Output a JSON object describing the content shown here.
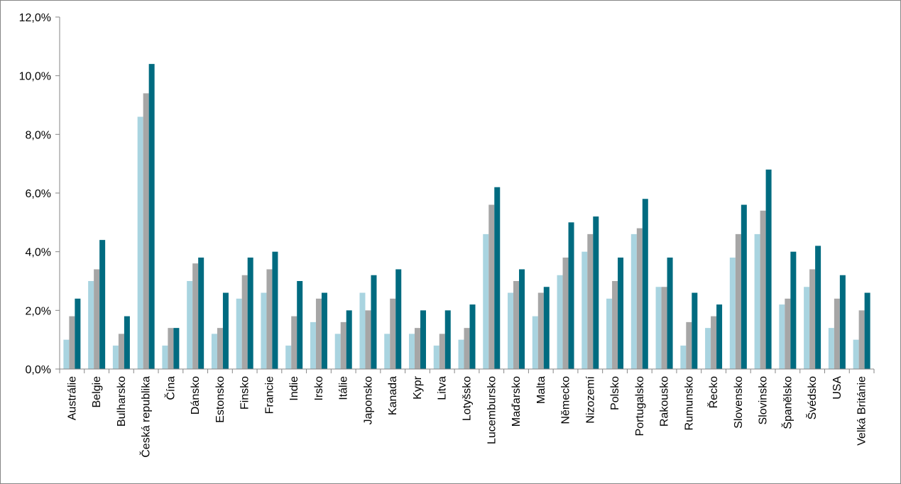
{
  "chart_data": {
    "type": "bar",
    "title": "",
    "xlabel": "",
    "ylabel": "",
    "ylim": [
      0,
      12
    ],
    "ytick_values": [
      0,
      2,
      4,
      6,
      8,
      10,
      12
    ],
    "ytick_labels": [
      "0,0%",
      "2,0%",
      "4,0%",
      "6,0%",
      "8,0%",
      "10,0%",
      "12,0%"
    ],
    "grid": false,
    "legend": "none",
    "colors": [
      "#a9d4e0",
      "#a6a6a6",
      "#006b80"
    ],
    "categories": [
      "Austrálie",
      "Belgie",
      "Bulharsko",
      "Česká republika",
      "Čína",
      "Dánsko",
      "Estonsko",
      "Finsko",
      "Francie",
      "Indie",
      "Irsko",
      "Itálie",
      "Japonsko",
      "Kanada",
      "Kypr",
      "Litva",
      "Lotyšsko",
      "Lucembursko",
      "Maďarsko",
      "Malta",
      "Německo",
      "Nizozemí",
      "Polsko",
      "Portugalsko",
      "Rakousko",
      "Rumunsko",
      "Řecko",
      "Slovensko",
      "Slovinsko",
      "Španělsko",
      "Švédsko",
      "USA",
      "Velká Británie"
    ],
    "series": [
      {
        "values": [
          1.0,
          3.0,
          0.8,
          8.6,
          0.8,
          3.0,
          1.2,
          2.4,
          2.6,
          0.8,
          1.6,
          1.2,
          2.6,
          1.2,
          1.2,
          0.8,
          1.0,
          4.6,
          2.6,
          1.8,
          3.2,
          4.0,
          2.4,
          4.6,
          2.8,
          0.8,
          1.4,
          3.8,
          4.6,
          2.2,
          2.8,
          1.4,
          1.0
        ]
      },
      {
        "values": [
          1.8,
          3.4,
          1.2,
          9.4,
          1.4,
          3.6,
          1.4,
          3.2,
          3.4,
          1.8,
          2.4,
          1.6,
          2.0,
          2.4,
          1.4,
          1.2,
          1.4,
          5.6,
          3.0,
          2.6,
          3.8,
          4.6,
          3.0,
          4.8,
          2.8,
          1.6,
          1.8,
          4.6,
          5.4,
          2.4,
          3.4,
          2.4,
          2.0
        ]
      },
      {
        "values": [
          2.4,
          4.4,
          1.8,
          10.4,
          1.4,
          3.8,
          2.6,
          3.8,
          4.0,
          3.0,
          2.6,
          2.0,
          3.2,
          3.4,
          2.0,
          2.0,
          2.2,
          6.2,
          3.4,
          2.8,
          5.0,
          5.2,
          3.8,
          5.8,
          3.8,
          2.6,
          2.2,
          5.6,
          6.8,
          4.0,
          4.2,
          3.2,
          2.6
        ]
      }
    ]
  }
}
